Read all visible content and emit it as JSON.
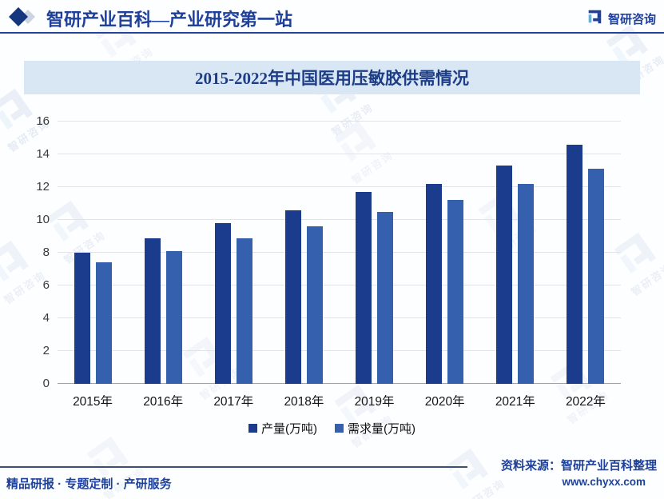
{
  "header": {
    "brand": "智研产业百科—产业研究第一站",
    "logo_text": "智研咨询"
  },
  "chart_data": {
    "type": "bar",
    "title": "2015-2022年中国医用压敏胶供需情况",
    "categories": [
      "2015年",
      "2016年",
      "2017年",
      "2018年",
      "2019年",
      "2020年",
      "2021年",
      "2022年"
    ],
    "series": [
      {
        "name": "产量(万吨)",
        "color": "#1b3c8c",
        "values": [
          8.0,
          8.9,
          9.8,
          10.6,
          11.7,
          12.2,
          13.3,
          14.6
        ]
      },
      {
        "name": "需求量(万吨)",
        "color": "#3560ad",
        "values": [
          7.4,
          8.1,
          8.9,
          9.6,
          10.5,
          11.2,
          12.2,
          13.1
        ]
      }
    ],
    "ylim": [
      0,
      16
    ],
    "ytick_step": 2,
    "grid": true,
    "legend_position": "bottom"
  },
  "footer": {
    "services": "精品研报 · 专题定制 · 产研服务",
    "source_line1": "资料来源：智研产业百科整理",
    "source_line2": "www.chyxx.com"
  },
  "watermark": {
    "text": "智研咨询"
  },
  "colors": {
    "accent": "#1e3f9a",
    "title_band": "#d9e6f4"
  }
}
